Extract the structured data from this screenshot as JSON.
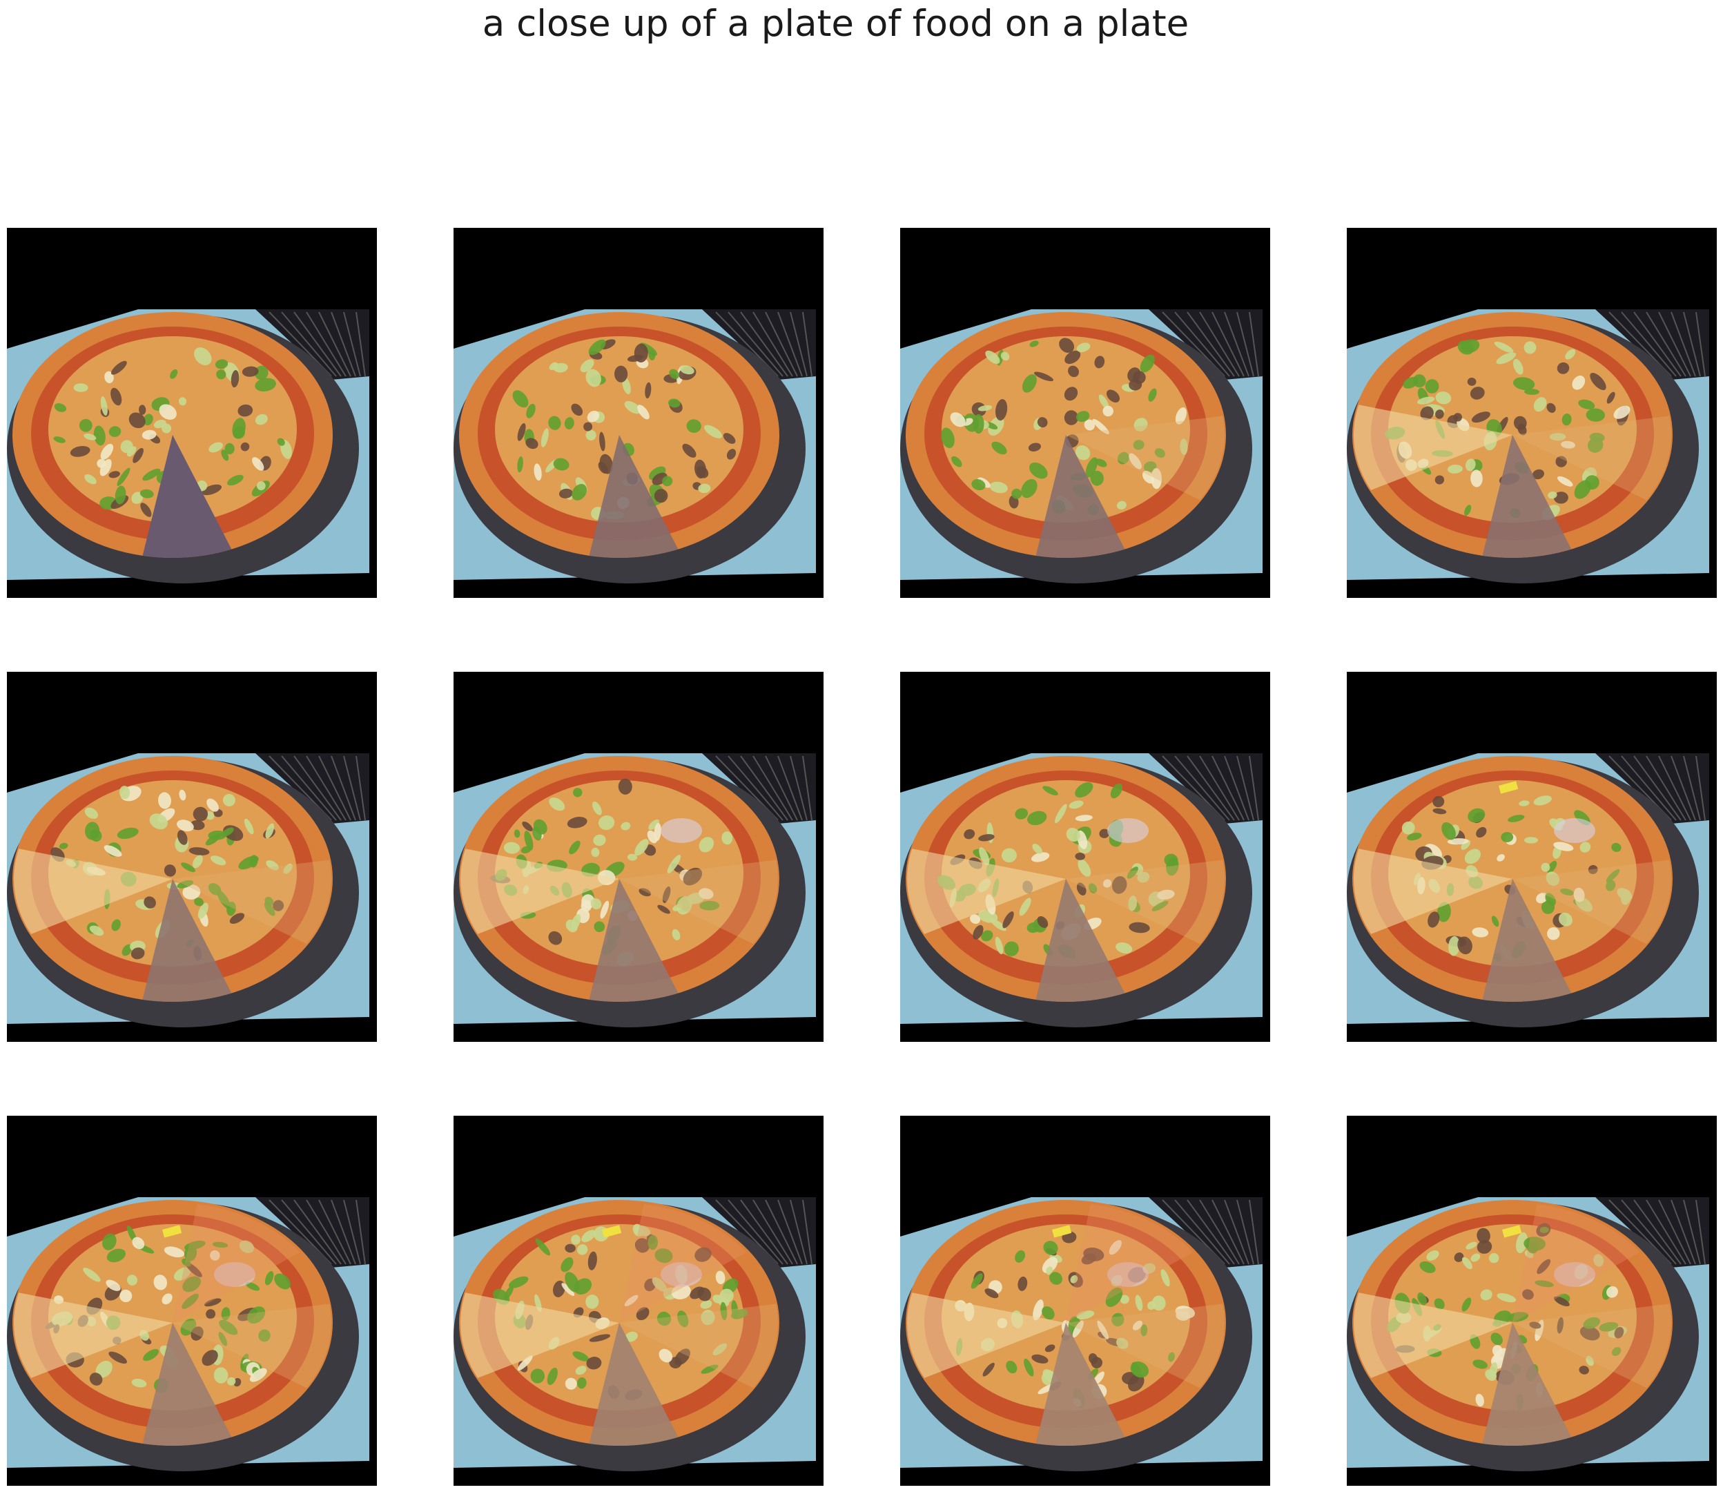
{
  "figure": {
    "title": "a close up of a plate of food on a plate",
    "grid_rows": 3,
    "grid_cols": 4,
    "panels": [
      {
        "variant": 0
      },
      {
        "variant": 1
      },
      {
        "variant": 2
      },
      {
        "variant": 3
      },
      {
        "variant": 4
      },
      {
        "variant": 5
      },
      {
        "variant": 6
      },
      {
        "variant": 7
      },
      {
        "variant": 8
      },
      {
        "variant": 9
      },
      {
        "variant": 10
      },
      {
        "variant": 11
      }
    ]
  },
  "colors": {
    "background": "#000000",
    "tablecloth": "#8fbfd3",
    "pan": "#3a3a40",
    "crust": "#d9813a",
    "sauce": "#c8522a",
    "cheese": "#e8b860",
    "pepper": "#5fa030",
    "zucchini": "#c8d890",
    "mushroom": "#6a4a3a",
    "missing_slice": "#6a5a70",
    "ghost_slice": "#e0b070",
    "label_sticker": "#f0e040"
  }
}
